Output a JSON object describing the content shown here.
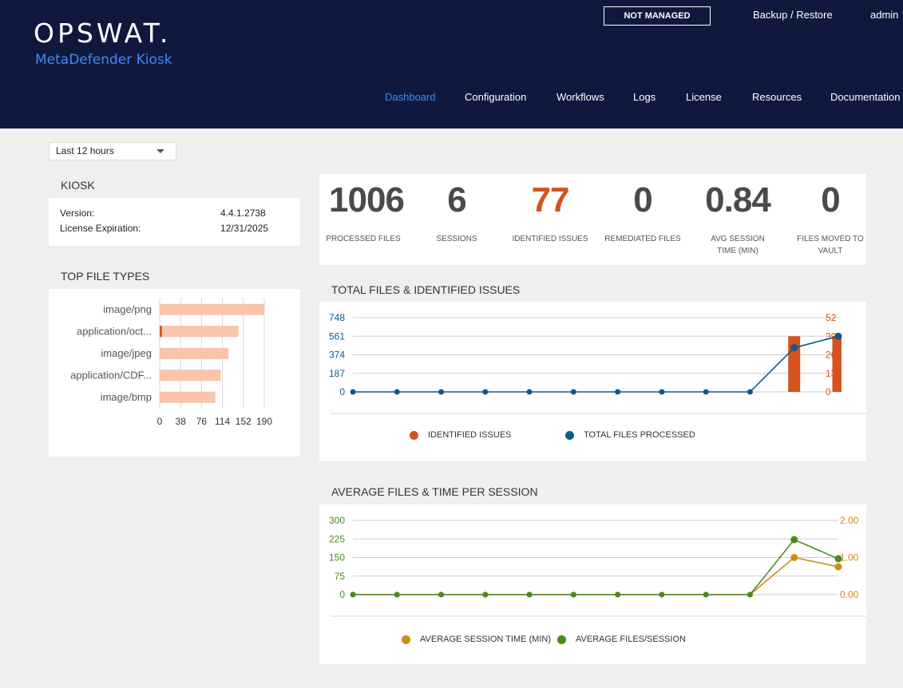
{
  "header": {
    "logo": "OPSWAT.",
    "product": "MetaDefender Kiosk",
    "status_badge": "NOT MANAGED",
    "backup_restore": "Backup / Restore",
    "user": "admin",
    "nav": [
      "Dashboard",
      "Configuration",
      "Workflows",
      "Logs",
      "License",
      "Resources",
      "Documentation"
    ],
    "active_nav": "Dashboard",
    "accent_color": "#3d8bfd"
  },
  "time_range": {
    "selected": "Last 12 hours"
  },
  "kiosk": {
    "title": "KIOSK",
    "version_label": "Version:",
    "version": "4.4.1.2738",
    "license_label": "License Expiration:",
    "license": "12/31/2025"
  },
  "stats": [
    {
      "value": "1006",
      "label": "PROCESSED FILES"
    },
    {
      "value": "6",
      "label": "SESSIONS"
    },
    {
      "value": "77",
      "label": "IDENTIFIED ISSUES",
      "color": "#d4531f"
    },
    {
      "value": "0",
      "label": "REMEDIATED FILES"
    },
    {
      "value": "0.84",
      "label": "AVG SESSION TIME (MIN)"
    },
    {
      "value": "0",
      "label": "FILES MOVED TO VAULT"
    }
  ],
  "chart_data": [
    {
      "type": "bar",
      "title": "TOP FILE TYPES",
      "orientation": "horizontal",
      "categories": [
        "image/png",
        "application/oct...",
        "image/jpeg",
        "application/CDF...",
        "image/bmp"
      ],
      "series": [
        {
          "values": [
            190,
            143,
            125,
            111,
            101
          ],
          "color": "#f9c4aa"
        },
        {
          "values": [
            0,
            4,
            0,
            0,
            0
          ],
          "color": "#d4531f"
        }
      ],
      "xticks": [
        "0",
        "38",
        "76",
        "114",
        "152",
        "190"
      ],
      "xlim": [
        0,
        190
      ],
      "grid": true
    },
    {
      "type": "line",
      "title": "TOTAL FILES & IDENTIFIED ISSUES",
      "x_count": 12,
      "series": [
        {
          "name": "IDENTIFIED ISSUES",
          "type": "bar",
          "axis": "right",
          "color": "#d4531f",
          "values": [
            0,
            0,
            0,
            0,
            0,
            0,
            0,
            0,
            0,
            0,
            39,
            39
          ]
        },
        {
          "name": "TOTAL FILES PROCESSED",
          "type": "line",
          "axis": "left",
          "color": "#0d5b8a",
          "values": [
            0,
            0,
            0,
            0,
            0,
            0,
            0,
            0,
            0,
            0,
            445,
            561
          ]
        }
      ],
      "y_left": {
        "ticks": [
          "748",
          "561",
          "374",
          "187",
          "0"
        ],
        "lim": [
          0,
          748
        ],
        "color": "#0d5b8a"
      },
      "y_right": {
        "ticks": [
          "52",
          "39",
          "26",
          "13",
          "0"
        ],
        "lim": [
          0,
          52
        ],
        "color": "#d4531f"
      },
      "legend": "bottom"
    },
    {
      "type": "line",
      "title": "AVERAGE FILES & TIME PER SESSION",
      "x_count": 12,
      "series": [
        {
          "name": "AVERAGE SESSION TIME (MIN)",
          "axis": "right",
          "color": "#d08b1b",
          "values": [
            0,
            0,
            0,
            0,
            0,
            0,
            0,
            0,
            0,
            0,
            1.0,
            0.75
          ]
        },
        {
          "name": "AVERAGE FILES/SESSION",
          "axis": "left",
          "color": "#4a8a1f",
          "values": [
            0,
            0,
            0,
            0,
            0,
            0,
            0,
            0,
            0,
            0,
            222,
            145
          ]
        }
      ],
      "y_left": {
        "ticks": [
          "300",
          "225",
          "150",
          "75",
          "0"
        ],
        "lim": [
          0,
          300
        ],
        "color": "#4a8a1f"
      },
      "y_right": {
        "ticks": [
          "2.00",
          "1.00",
          "0.00"
        ],
        "lim": [
          0,
          2
        ],
        "color": "#d08b1b"
      },
      "legend": "bottom"
    }
  ]
}
